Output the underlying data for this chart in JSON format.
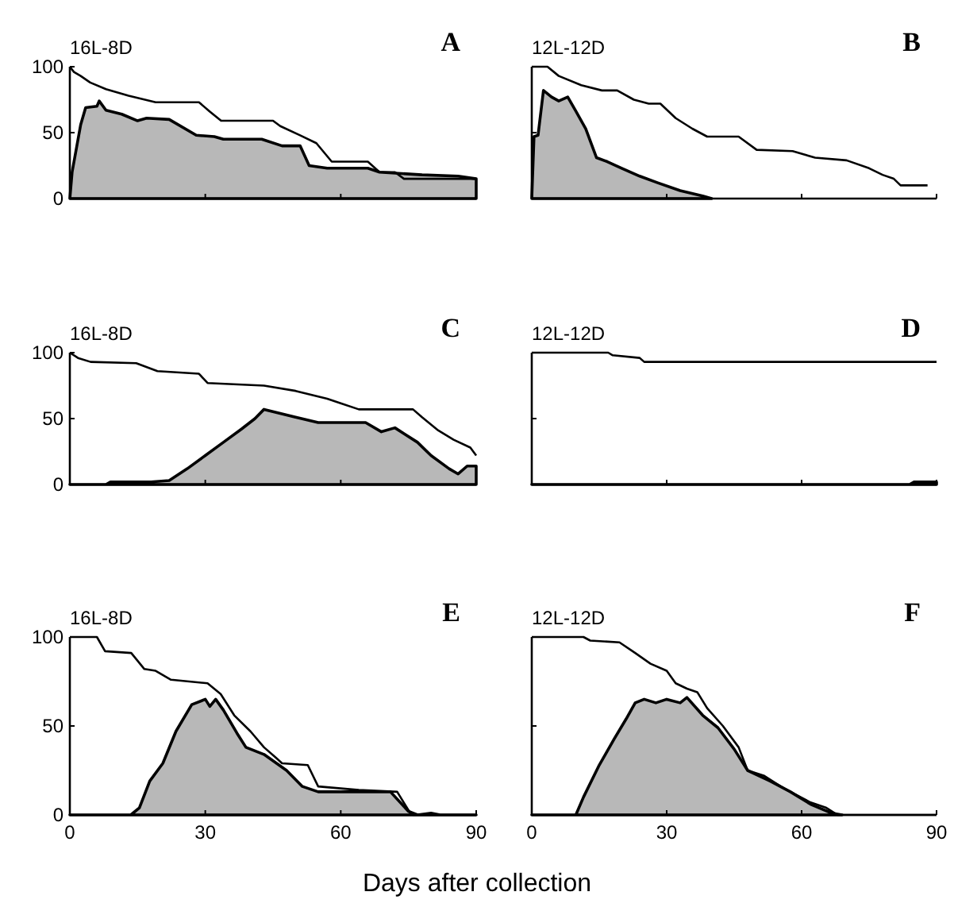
{
  "chart_data": [
    {
      "type": "line",
      "title": "A",
      "subtitle": "16L-8D",
      "xlim": [
        0,
        90
      ],
      "ylim": [
        0,
        100
      ],
      "xticks": [
        0,
        30,
        60,
        90
      ],
      "yticks": [
        0,
        50,
        100
      ],
      "tick_labels": "y",
      "series": [
        {
          "type": "area",
          "color": "#b8b8b8",
          "x": [
            0,
            0.5,
            2.4,
            3.5,
            6,
            6.5,
            8,
            11.5,
            15,
            17,
            22,
            28,
            32,
            34,
            42.5,
            47,
            51,
            53,
            57,
            66,
            68.6,
            78,
            86,
            90
          ],
          "values": [
            0,
            20,
            56,
            69,
            70,
            74,
            67,
            64,
            59,
            61,
            60,
            48,
            47,
            45,
            45,
            40,
            40,
            25,
            23,
            23,
            20,
            18,
            17,
            15
          ]
        },
        {
          "type": "line",
          "color": "#000000",
          "x": [
            0,
            0.9,
            2.4,
            4.5,
            8,
            13,
            19,
            28.6,
            31,
            33.5,
            45,
            46.6,
            51,
            54.6,
            58,
            66,
            68.6,
            72,
            74,
            90
          ],
          "values": [
            100,
            96,
            93,
            88,
            83,
            78,
            73,
            73,
            66,
            59,
            59,
            55,
            48,
            42,
            28,
            28,
            20,
            20,
            15,
            15
          ]
        }
      ]
    },
    {
      "type": "line",
      "title": "B",
      "subtitle": "12L-12D",
      "xlim": [
        0,
        90
      ],
      "ylim": [
        0,
        100
      ],
      "xticks": [
        0,
        30,
        60,
        90
      ],
      "yticks": [
        0,
        50,
        100
      ],
      "tick_labels": false,
      "series": [
        {
          "type": "area",
          "color": "#b8b8b8",
          "x": [
            0,
            0.5,
            1.4,
            2.6,
            4.4,
            6,
            8,
            9.7,
            12,
            14.4,
            16.8,
            20,
            24,
            28,
            33,
            38,
            40
          ],
          "values": [
            0,
            47,
            48,
            82,
            77,
            74,
            77,
            67,
            53,
            31,
            28,
            23,
            17,
            12,
            6,
            2,
            0
          ]
        },
        {
          "type": "line",
          "color": "#000000",
          "x": [
            0,
            3.5,
            6,
            11,
            15.6,
            19,
            22.7,
            26,
            28.6,
            32,
            35.7,
            39,
            46,
            50,
            58,
            63,
            70,
            75,
            78,
            80.5,
            82,
            88
          ],
          "values": [
            100,
            100,
            93,
            86,
            82,
            82,
            75,
            72,
            72,
            61,
            53,
            47,
            47,
            37,
            36,
            31,
            29,
            23,
            18,
            15,
            10,
            10
          ]
        }
      ]
    },
    {
      "type": "line",
      "title": "C",
      "subtitle": "16L-8D",
      "xlim": [
        0,
        90
      ],
      "ylim": [
        0,
        100
      ],
      "xticks": [
        0,
        30,
        60,
        90
      ],
      "yticks": [
        0,
        50,
        100
      ],
      "tick_labels": "y",
      "series": [
        {
          "type": "area",
          "color": "#b8b8b8",
          "x": [
            0,
            8,
            9,
            18,
            22,
            26,
            30,
            34,
            38,
            41,
            43,
            50,
            55,
            60,
            65.5,
            69,
            72,
            77,
            80,
            84,
            86,
            88,
            90
          ],
          "values": [
            0,
            0,
            2,
            2,
            3,
            12,
            22,
            32,
            42,
            50,
            57,
            51,
            47,
            47,
            47,
            40,
            43,
            32,
            22,
            12,
            8,
            14,
            14
          ]
        },
        {
          "type": "line",
          "color": "#000000",
          "x": [
            0,
            1.8,
            4.6,
            14.7,
            19.4,
            28.6,
            30.5,
            43,
            50,
            57,
            64,
            76,
            78,
            81.6,
            85,
            88.7,
            90
          ],
          "values": [
            100,
            96,
            93,
            92,
            86,
            84,
            77,
            75,
            71,
            65,
            57,
            57,
            51,
            41,
            34,
            28,
            22
          ]
        }
      ]
    },
    {
      "type": "line",
      "title": "D",
      "subtitle": "12L-12D",
      "xlim": [
        0,
        90
      ],
      "ylim": [
        0,
        100
      ],
      "xticks": [
        0,
        30,
        60,
        90
      ],
      "yticks": [
        0,
        50,
        100
      ],
      "tick_labels": false,
      "series": [
        {
          "type": "area",
          "color": "#b8b8b8",
          "x": [
            0,
            84,
            85,
            90
          ],
          "values": [
            0,
            0,
            2,
            2
          ]
        },
        {
          "type": "line",
          "color": "#000000",
          "x": [
            0,
            17,
            18,
            24,
            25,
            90
          ],
          "values": [
            100,
            100,
            98,
            96,
            93,
            93
          ]
        }
      ]
    },
    {
      "type": "line",
      "title": "E",
      "subtitle": "16L-8D",
      "xlabel": "Days after collection",
      "xlim": [
        0,
        90
      ],
      "ylim": [
        0,
        100
      ],
      "xticks": [
        0,
        30,
        60,
        90
      ],
      "yticks": [
        0,
        50,
        100
      ],
      "series": [
        {
          "type": "area",
          "color": "#b8b8b8",
          "x": [
            0,
            13.5,
            15.4,
            17.7,
            20.6,
            23.5,
            27,
            30,
            31,
            32.3,
            34,
            37,
            39,
            43,
            48,
            51.5,
            55,
            71,
            75,
            77,
            80,
            82,
            90
          ],
          "values": [
            0,
            0,
            4,
            19,
            29,
            47,
            62,
            65,
            61,
            65,
            59,
            46,
            38,
            34,
            25,
            16,
            13,
            13,
            2,
            0,
            1,
            0,
            0
          ]
        },
        {
          "type": "line",
          "color": "#000000",
          "x": [
            0,
            6,
            7.8,
            13.6,
            16.5,
            19,
            22.4,
            30.5,
            33.4,
            36.4,
            40,
            43,
            45.7,
            47,
            52.7,
            55,
            64,
            72.5,
            75.4,
            76,
            90
          ],
          "values": [
            100,
            100,
            92,
            91,
            82,
            81,
            76,
            74,
            68,
            56,
            47,
            38,
            32,
            29,
            28,
            16,
            14,
            13,
            1,
            0,
            0
          ]
        }
      ]
    },
    {
      "type": "line",
      "title": "F",
      "subtitle": "12L-12D",
      "xlim": [
        0,
        90
      ],
      "ylim": [
        0,
        100
      ],
      "xticks": [
        0,
        30,
        60,
        90
      ],
      "yticks": [
        0,
        50,
        100
      ],
      "tick_labels": "x",
      "series": [
        {
          "type": "area",
          "color": "#b8b8b8",
          "x": [
            0,
            9.8,
            11.5,
            15,
            18.4,
            21,
            23,
            25,
            27.6,
            30,
            33,
            34.5,
            38,
            41.4,
            45,
            48,
            53,
            57.5,
            62,
            66.7,
            69
          ],
          "values": [
            0,
            0,
            10,
            28,
            43,
            54,
            63,
            65,
            63,
            65,
            63,
            66,
            56,
            49,
            37,
            25,
            19,
            13,
            6,
            1,
            0
          ]
        },
        {
          "type": "line",
          "color": "#000000",
          "x": [
            0,
            11.5,
            13,
            19.5,
            23,
            26.4,
            30,
            32,
            34.5,
            36.8,
            39,
            42.5,
            46,
            48,
            51.7,
            56,
            62,
            65.5,
            68,
            90
          ],
          "values": [
            100,
            100,
            98,
            97,
            91,
            85,
            81,
            74,
            71,
            69,
            60,
            50,
            38,
            25,
            22,
            15,
            7,
            4,
            0,
            0
          ]
        }
      ]
    }
  ]
}
